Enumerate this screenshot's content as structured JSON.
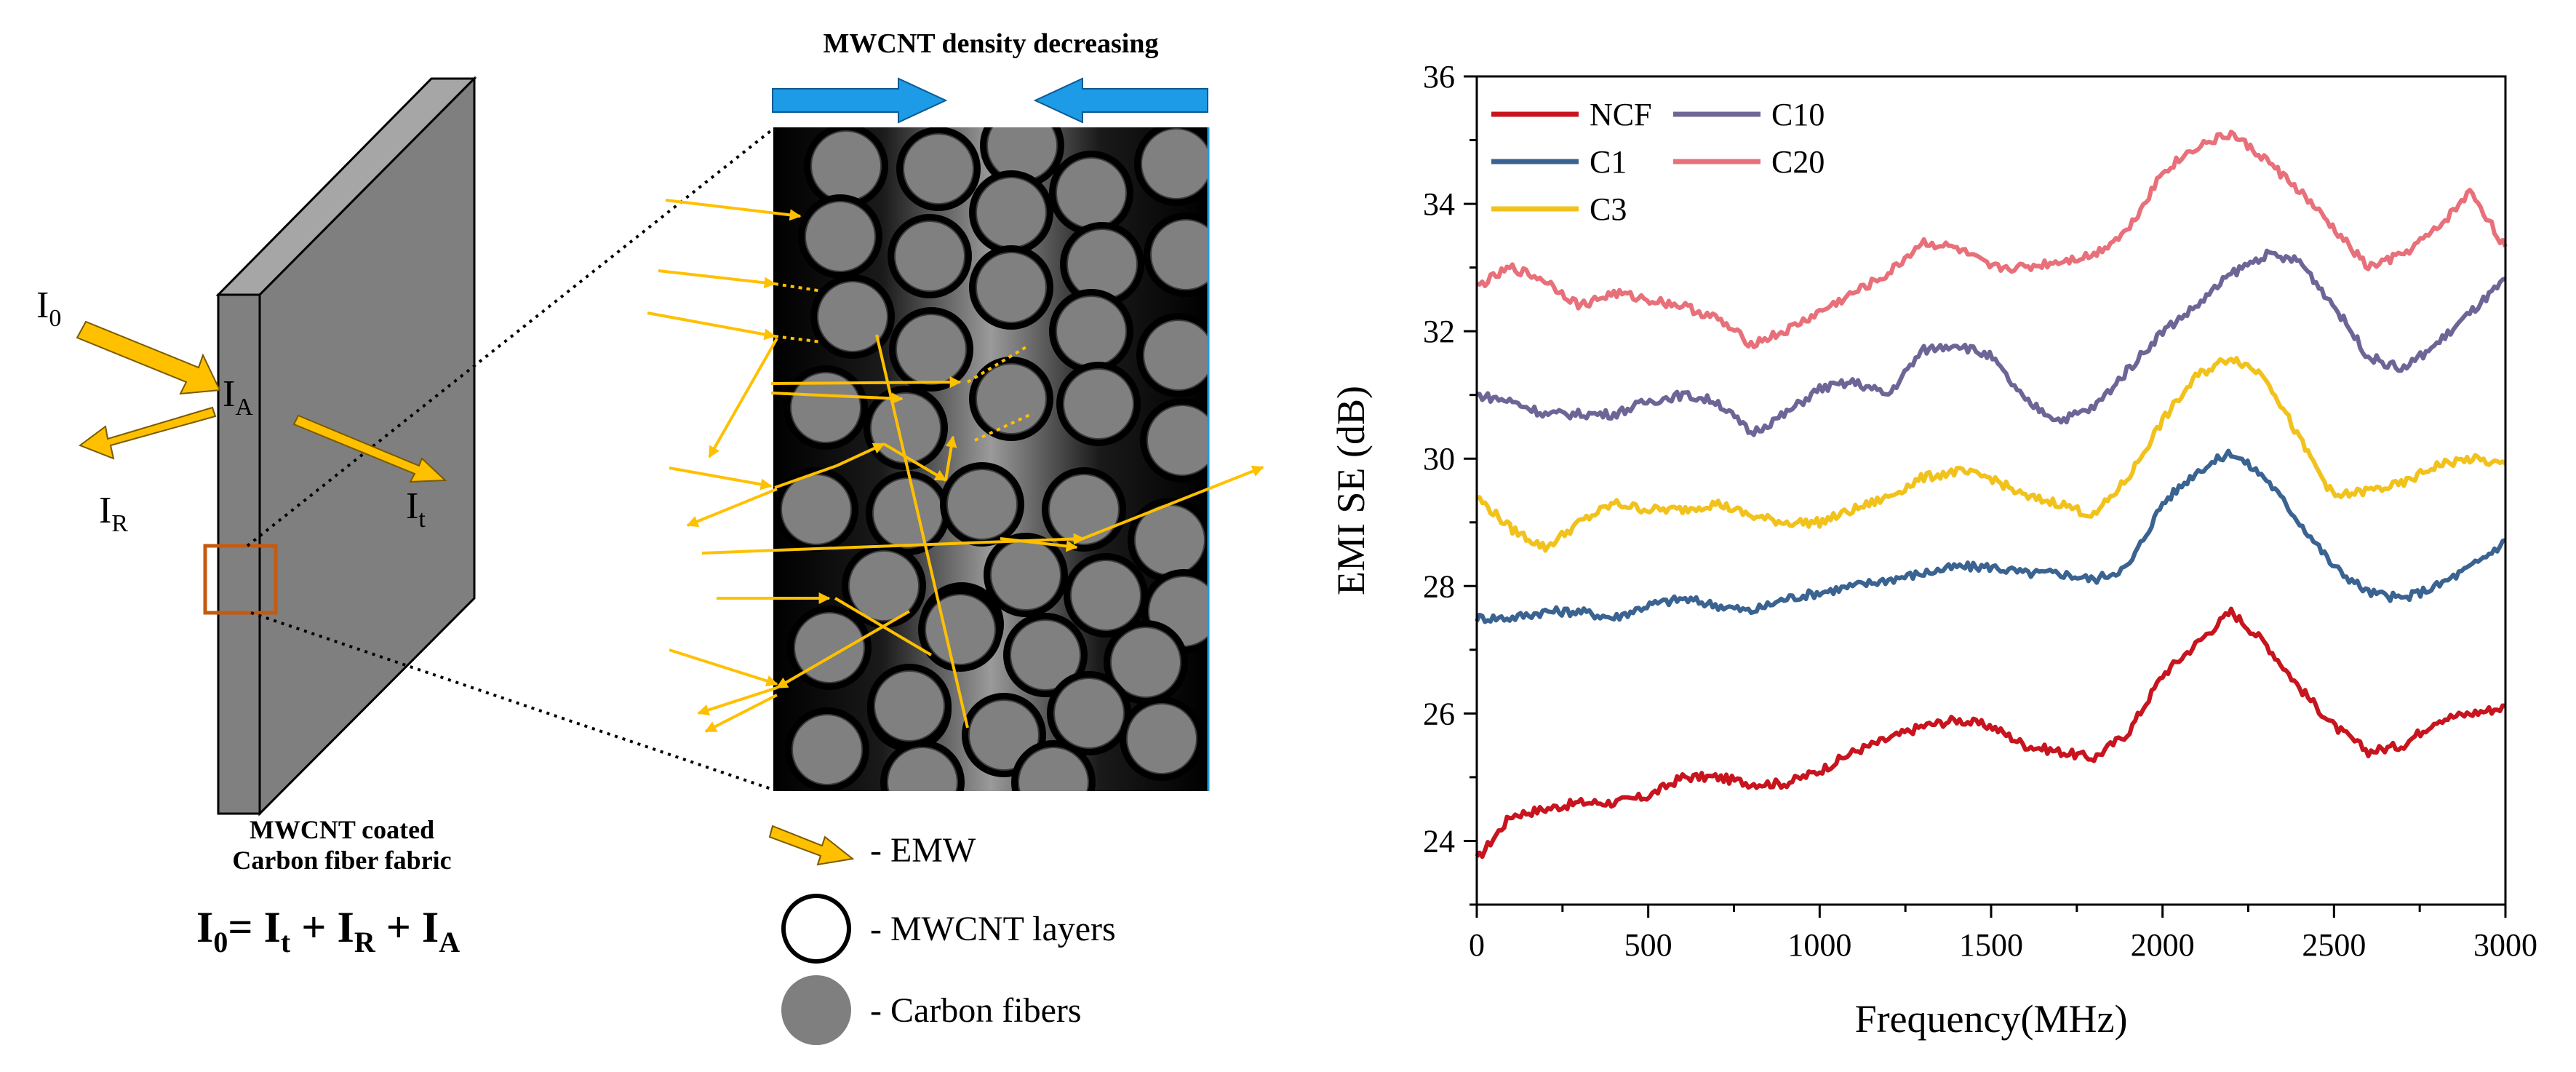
{
  "left_panel": {
    "label_i0": "I",
    "label_i0_sub": "0",
    "label_ia": "I",
    "label_ia_sub": "A",
    "label_ir": "I",
    "label_ir_sub": "R",
    "label_it": "I",
    "label_it_sub": "t",
    "caption_line1": "MWCNT coated",
    "caption_line2": "Carbon fiber fabric",
    "equation": "I₀= Iₜ + I_R + I_A",
    "eq_parts": {
      "i": "I",
      "sub0": "0",
      "eq": "= ",
      "sub_t": "t",
      "plus": " + ",
      "sub_r": "R",
      "sub_a": "A"
    }
  },
  "middle_panel": {
    "title": "MWCNT density decreasing",
    "legend": {
      "emw": "- EMW",
      "mwcnt_layers": "- MWCNT layers",
      "carbon_fibers": "- Carbon fibers"
    }
  },
  "colors": {
    "arrow_yellow": "#FFC000",
    "arrow_blue": "#1E9BE6",
    "fiber_grey": "#7F7F7F",
    "box_orange": "#C55A11",
    "NCF": "#C8141E",
    "C1": "#3A6391",
    "C3": "#F2C21C",
    "C10": "#6E6597",
    "C20": "#E8707A"
  },
  "chart_data": {
    "type": "line",
    "title": "",
    "xlabel": "Frequency(MHz)",
    "ylabel": "EMI SE (dB)",
    "xlim": [
      0,
      3000
    ],
    "ylim": [
      23,
      36
    ],
    "xticks": [
      0,
      500,
      1000,
      1500,
      2000,
      2500,
      3000
    ],
    "yticks": [
      24,
      26,
      28,
      30,
      32,
      34,
      36
    ],
    "grid": false,
    "legend_position": "top-left",
    "legend_order": [
      "NCF",
      "C10",
      "C1",
      "C20",
      "C3"
    ],
    "x": [
      0,
      100,
      200,
      300,
      400,
      500,
      600,
      700,
      800,
      900,
      1000,
      1100,
      1200,
      1300,
      1400,
      1500,
      1600,
      1700,
      1800,
      1900,
      2000,
      2100,
      2200,
      2300,
      2400,
      2500,
      2600,
      2700,
      2800,
      2900,
      3000
    ],
    "series": [
      {
        "name": "NCF",
        "values": [
          23.7,
          24.4,
          24.5,
          24.6,
          24.6,
          24.7,
          25.0,
          25.0,
          24.9,
          24.9,
          25.1,
          25.4,
          25.6,
          25.8,
          25.9,
          25.8,
          25.5,
          25.4,
          25.3,
          25.7,
          26.6,
          27.1,
          27.6,
          27.1,
          26.4,
          25.8,
          25.4,
          25.5,
          25.9,
          26.0,
          26.1
        ]
      },
      {
        "name": "C1",
        "values": [
          27.5,
          27.5,
          27.6,
          27.6,
          27.5,
          27.7,
          27.8,
          27.7,
          27.6,
          27.8,
          27.9,
          28.0,
          28.1,
          28.2,
          28.3,
          28.3,
          28.2,
          28.2,
          28.1,
          28.3,
          29.3,
          29.8,
          30.1,
          29.7,
          29.0,
          28.3,
          27.9,
          27.8,
          28.0,
          28.3,
          28.7
        ]
      },
      {
        "name": "C3",
        "values": [
          29.4,
          28.9,
          28.6,
          29.0,
          29.3,
          29.2,
          29.2,
          29.3,
          29.1,
          29.0,
          29.0,
          29.2,
          29.4,
          29.7,
          29.8,
          29.7,
          29.4,
          29.3,
          29.1,
          29.7,
          30.6,
          31.3,
          31.6,
          31.3,
          30.3,
          29.4,
          29.5,
          29.6,
          29.9,
          30.0,
          29.9
        ]
      },
      {
        "name": "C10",
        "values": [
          31.0,
          30.9,
          30.7,
          30.7,
          30.7,
          30.9,
          31.0,
          30.9,
          30.4,
          30.7,
          31.1,
          31.2,
          31.0,
          31.7,
          31.8,
          31.6,
          30.9,
          30.6,
          30.8,
          31.4,
          32.0,
          32.4,
          32.9,
          33.2,
          33.1,
          32.4,
          31.6,
          31.4,
          31.8,
          32.3,
          32.8
        ]
      },
      {
        "name": "C20",
        "values": [
          32.7,
          33.0,
          32.8,
          32.4,
          32.6,
          32.5,
          32.4,
          32.2,
          31.8,
          32.0,
          32.3,
          32.6,
          32.9,
          33.4,
          33.3,
          33.0,
          33.0,
          33.1,
          33.2,
          33.6,
          34.5,
          34.9,
          35.1,
          34.7,
          34.2,
          33.6,
          33.0,
          33.2,
          33.6,
          34.2,
          33.3
        ]
      }
    ]
  }
}
